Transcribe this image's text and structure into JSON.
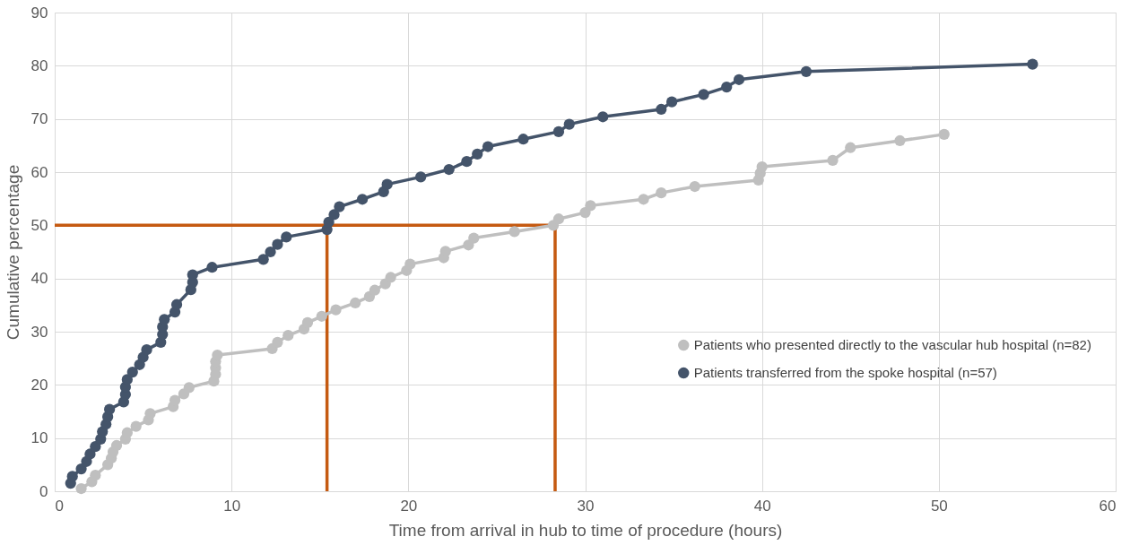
{
  "chart_data": {
    "type": "line",
    "xlabel": "Time from arrival in hub to time of procedure (hours)",
    "ylabel": "Cumulative percentage",
    "xlim": [
      0,
      60
    ],
    "xticks": [
      0,
      10,
      20,
      30,
      40,
      50,
      60
    ],
    "ylim": [
      0,
      90
    ],
    "yticks": [
      0,
      10,
      20,
      30,
      40,
      50,
      60,
      70,
      80,
      90
    ],
    "grid": true,
    "legend": "right",
    "series": [
      {
        "color": "#c55a11",
        "marker": "none",
        "x": [
          0,
          28.3,
          28.3
        ],
        "values": [
          50,
          50,
          0
        ]
      },
      {
        "color": "#c55a11",
        "marker": "none",
        "x": [
          15.4,
          15.4
        ],
        "values": [
          50,
          0
        ]
      },
      {
        "name": "Patients who presented directly to the vascular hub hospital (n=82)",
        "color": "#bfbfbf",
        "marker": "circle",
        "x": [
          1.5,
          2.1,
          2.3,
          3.0,
          3.2,
          3.3,
          3.5,
          4.0,
          4.1,
          4.6,
          5.3,
          5.4,
          6.7,
          6.8,
          7.3,
          7.6,
          9.0,
          9.1,
          9.1,
          9.1,
          9.2,
          12.3,
          12.6,
          13.2,
          14.1,
          14.3,
          15.1,
          15.9,
          17.0,
          17.8,
          18.1,
          18.7,
          19.0,
          19.9,
          20.1,
          22.0,
          22.1,
          23.4,
          23.7,
          26.0,
          28.2,
          28.5,
          30.0,
          30.3,
          33.3,
          34.3,
          36.2,
          39.8,
          39.9,
          40.0,
          44.0,
          45.0,
          47.8,
          50.3
        ],
        "values": [
          0.5,
          1.8,
          3.0,
          5.0,
          6.2,
          7.4,
          8.6,
          9.8,
          11.0,
          12.2,
          13.4,
          14.6,
          15.9,
          17.1,
          18.3,
          19.5,
          20.7,
          22.0,
          23.2,
          24.4,
          25.6,
          26.8,
          28.0,
          29.3,
          30.5,
          31.7,
          32.9,
          34.1,
          35.4,
          36.6,
          37.8,
          39.0,
          40.2,
          41.5,
          42.7,
          43.9,
          45.1,
          46.3,
          47.6,
          48.8,
          50.0,
          51.2,
          52.4,
          53.7,
          54.9,
          56.1,
          57.3,
          58.5,
          59.8,
          61.0,
          62.2,
          64.6,
          65.9,
          67.1
        ]
      },
      {
        "name": "Patients transferred from the spoke hospital (n=57)",
        "color": "#44546a",
        "marker": "circle",
        "x": [
          0.9,
          1.0,
          1.5,
          1.8,
          2.0,
          2.3,
          2.6,
          2.7,
          2.9,
          3.0,
          3.1,
          3.9,
          4.0,
          4.0,
          4.1,
          4.4,
          4.8,
          5.0,
          5.2,
          6.0,
          6.1,
          6.1,
          6.2,
          6.8,
          6.9,
          7.7,
          7.8,
          7.8,
          8.9,
          11.8,
          12.2,
          12.6,
          13.1,
          15.4,
          15.5,
          15.8,
          16.1,
          17.4,
          18.6,
          18.8,
          20.7,
          22.3,
          23.3,
          23.9,
          24.5,
          26.5,
          28.5,
          29.1,
          31.0,
          34.3,
          34.9,
          36.7,
          38.0,
          38.7,
          42.5,
          55.3
        ],
        "values": [
          1.5,
          2.8,
          4.2,
          5.6,
          7.0,
          8.4,
          9.8,
          11.2,
          12.6,
          14.0,
          15.4,
          16.8,
          18.2,
          19.6,
          21.0,
          22.4,
          23.8,
          25.2,
          26.6,
          28.0,
          29.5,
          30.9,
          32.3,
          33.7,
          35.1,
          37.9,
          39.3,
          40.7,
          42.1,
          43.6,
          45.0,
          46.4,
          47.8,
          49.2,
          50.6,
          52.0,
          53.5,
          54.9,
          56.3,
          57.7,
          59.1,
          60.5,
          62.0,
          63.4,
          64.8,
          66.2,
          67.6,
          69.0,
          70.4,
          71.8,
          73.2,
          74.6,
          76.0,
          77.4,
          78.9,
          80.3
        ]
      }
    ]
  }
}
